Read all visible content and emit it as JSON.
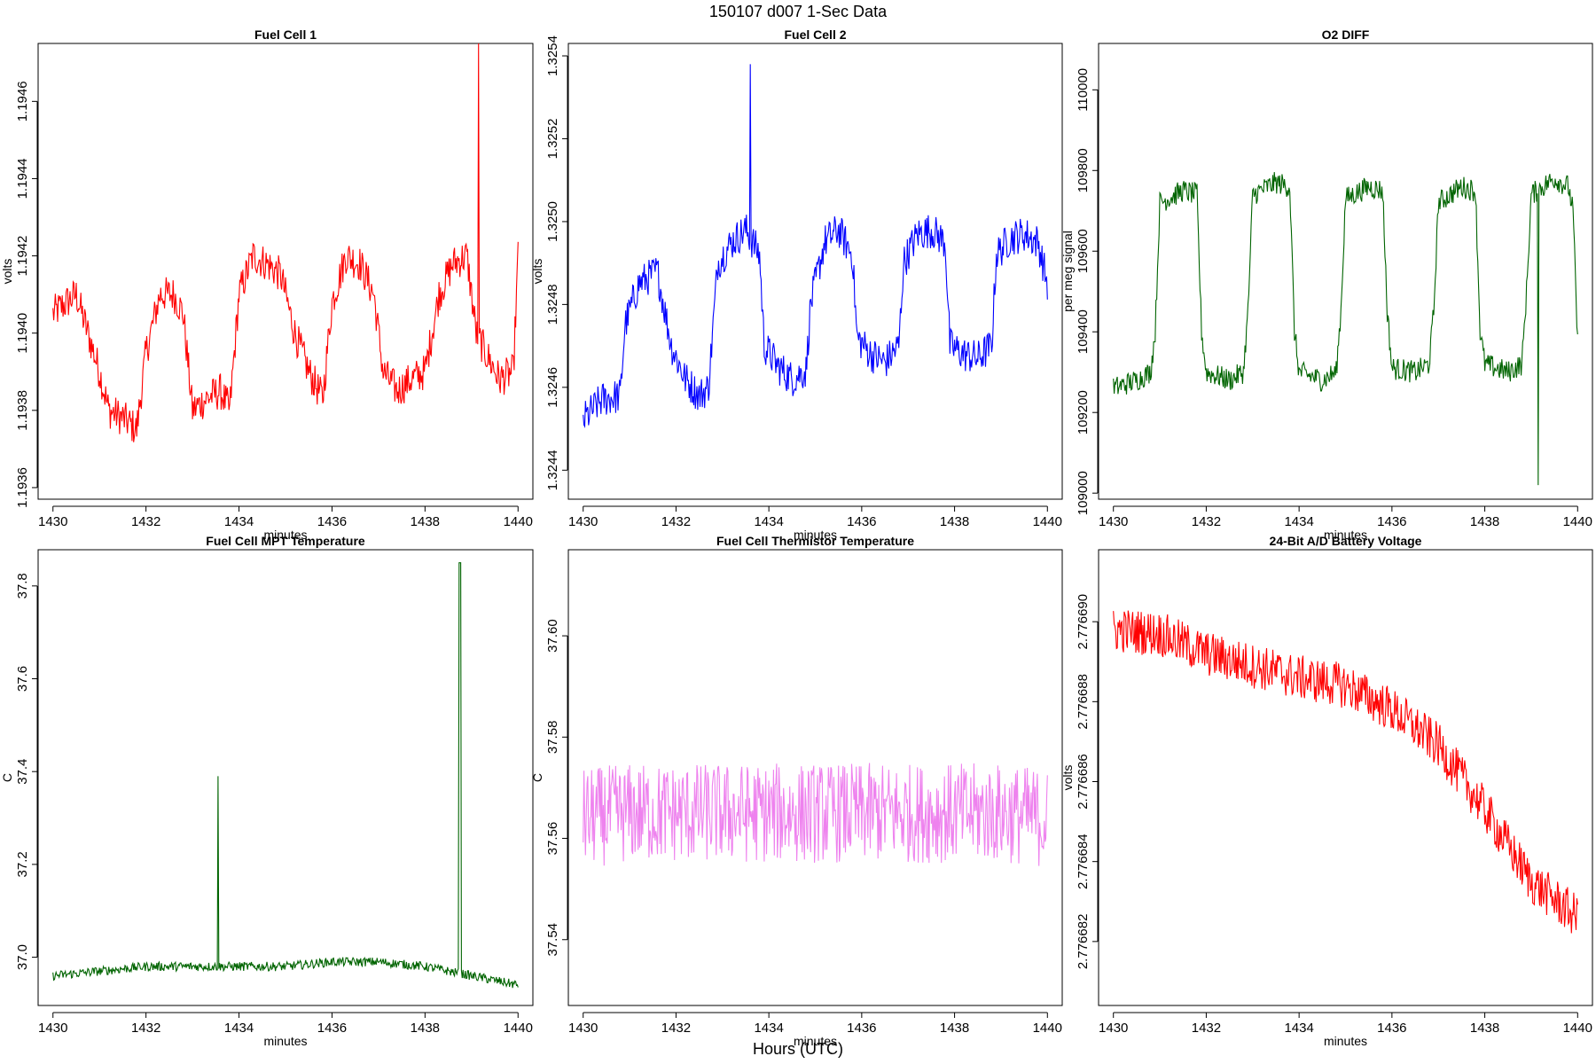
{
  "page_title": "150107   d007   1-Sec Data",
  "outer_xlabel": "Hours (UTC)",
  "chart_data": [
    {
      "type": "line",
      "title": "Fuel Cell 1",
      "xlabel": "minutes",
      "ylabel": "volts",
      "color": "#ff0000",
      "xlim": [
        1430,
        1440
      ],
      "ylim": [
        1.19357,
        1.19475
      ],
      "xticks": [
        1430,
        1432,
        1434,
        1436,
        1438,
        1440
      ],
      "yticks": [
        1.1936,
        1.1938,
        1.194,
        1.1942,
        1.1944,
        1.1946
      ],
      "ytick_decimals": 4,
      "series": [
        {
          "x": [
            1430.0,
            1430.5,
            1431.0,
            1431.2,
            1431.5,
            1431.8,
            1432.0,
            1432.3,
            1432.6,
            1432.8,
            1433.0,
            1433.3,
            1433.6,
            1433.8,
            1434.0,
            1434.3,
            1434.6,
            1434.9,
            1435.2,
            1435.5,
            1435.8,
            1436.0,
            1436.3,
            1436.6,
            1436.9,
            1437.1,
            1437.4,
            1437.7,
            1438.0,
            1438.3,
            1438.6,
            1438.9,
            1439.1,
            1439.3,
            1439.6,
            1439.9,
            1440.0
          ],
          "y": [
            1.19405,
            1.1941,
            1.1939,
            1.1938,
            1.19378,
            1.19375,
            1.19395,
            1.1941,
            1.1941,
            1.19405,
            1.1938,
            1.19383,
            1.19385,
            1.1938,
            1.1941,
            1.1942,
            1.19418,
            1.19415,
            1.194,
            1.1939,
            1.19383,
            1.19408,
            1.1942,
            1.19418,
            1.1941,
            1.1939,
            1.19385,
            1.19388,
            1.1939,
            1.1941,
            1.19418,
            1.1942,
            1.194,
            1.19395,
            1.19388,
            1.1939,
            1.1942
          ]
        }
      ]
    },
    {
      "type": "line",
      "title": "Fuel Cell 2",
      "xlabel": "minutes",
      "ylabel": "volts",
      "color": "#0000ff",
      "xlim": [
        1430,
        1440
      ],
      "ylim": [
        1.32433,
        1.32543
      ],
      "xticks": [
        1430,
        1432,
        1434,
        1436,
        1438,
        1440
      ],
      "yticks": [
        1.3244,
        1.3246,
        1.3248,
        1.325,
        1.3252,
        1.3254
      ],
      "ytick_decimals": 4,
      "series": [
        {
          "x": [
            1430.0,
            1430.4,
            1430.8,
            1430.9,
            1431.2,
            1431.6,
            1431.9,
            1432.2,
            1432.5,
            1432.7,
            1432.9,
            1433.2,
            1433.5,
            1433.8,
            1433.9,
            1434.2,
            1434.5,
            1434.8,
            1434.9,
            1435.2,
            1435.5,
            1435.8,
            1435.9,
            1436.2,
            1436.5,
            1436.8,
            1436.9,
            1437.2,
            1437.5,
            1437.8,
            1437.9,
            1438.2,
            1438.5,
            1438.8,
            1438.9,
            1439.2,
            1439.5,
            1439.8,
            1440.0
          ],
          "y": [
            1.32452,
            1.32457,
            1.32458,
            1.32475,
            1.32485,
            1.32488,
            1.3247,
            1.32462,
            1.32458,
            1.3246,
            1.3249,
            1.32495,
            1.32498,
            1.32492,
            1.3247,
            1.32465,
            1.32462,
            1.32464,
            1.3248,
            1.32495,
            1.32498,
            1.32492,
            1.32472,
            1.32468,
            1.32466,
            1.3247,
            1.3249,
            1.32497,
            1.32498,
            1.32495,
            1.3247,
            1.32468,
            1.32467,
            1.3247,
            1.32492,
            1.32496,
            1.32497,
            1.32495,
            1.32485
          ]
        }
      ]
    },
    {
      "type": "line",
      "title": "O2 DIFF",
      "xlabel": "minutes",
      "ylabel": "per meg signal",
      "color": "#006400",
      "xlim": [
        1430,
        1440
      ],
      "ylim": [
        108985,
        110115
      ],
      "xticks": [
        1430,
        1432,
        1434,
        1436,
        1438,
        1440
      ],
      "yticks": [
        109000,
        109200,
        109400,
        109600,
        109800,
        110000
      ],
      "ytick_decimals": 0,
      "series": [
        {
          "x": [
            1430.0,
            1430.5,
            1430.8,
            1430.9,
            1431.0,
            1431.5,
            1431.8,
            1431.9,
            1432.0,
            1432.5,
            1432.8,
            1432.9,
            1433.0,
            1433.5,
            1433.8,
            1433.9,
            1434.0,
            1434.5,
            1434.8,
            1434.9,
            1435.0,
            1435.5,
            1435.8,
            1435.9,
            1436.0,
            1436.5,
            1436.8,
            1436.9,
            1437.0,
            1437.5,
            1437.8,
            1437.9,
            1438.0,
            1438.5,
            1438.8,
            1438.9,
            1439.0,
            1439.5,
            1439.8,
            1439.9,
            1440.0
          ],
          "y": [
            109260,
            109280,
            109300,
            109400,
            109720,
            109750,
            109740,
            109400,
            109300,
            109280,
            109300,
            109450,
            109740,
            109770,
            109760,
            109400,
            109300,
            109280,
            109300,
            109450,
            109730,
            109760,
            109750,
            109450,
            109310,
            109300,
            109320,
            109450,
            109720,
            109760,
            109750,
            109400,
            109320,
            109300,
            109320,
            109500,
            109740,
            109780,
            109760,
            109700,
            109370
          ]
        }
      ]
    },
    {
      "type": "line",
      "title": "Fuel Cell MPT Temperature",
      "xlabel": "minutes",
      "ylabel": "C",
      "color": "#006400",
      "xlim": [
        1430,
        1440
      ],
      "ylim": [
        36.896,
        37.878
      ],
      "xticks": [
        1430,
        1432,
        1434,
        1436,
        1438,
        1440
      ],
      "yticks": [
        37.0,
        37.2,
        37.4,
        37.6,
        37.8
      ],
      "ytick_decimals": 1,
      "series": [
        {
          "x": [
            1430.0,
            1431.0,
            1432.0,
            1433.0,
            1433.5,
            1434.0,
            1435.0,
            1436.0,
            1437.0,
            1438.0,
            1438.5,
            1439.0,
            1439.5,
            1440.0
          ],
          "y": [
            36.96,
            36.97,
            36.98,
            36.98,
            36.98,
            36.98,
            36.98,
            36.99,
            36.99,
            36.98,
            36.97,
            36.96,
            36.95,
            36.94
          ]
        }
      ]
    },
    {
      "type": "line",
      "title": "Fuel Cell Thermistor Temperature",
      "xlabel": "minutes",
      "ylabel": "C",
      "color": "#ee82ee",
      "xlim": [
        1430,
        1440
      ],
      "ylim": [
        37.527,
        37.617
      ],
      "xticks": [
        1430,
        1432,
        1434,
        1436,
        1438,
        1440
      ],
      "yticks": [
        37.54,
        37.56,
        37.58,
        37.6
      ],
      "ytick_decimals": 2,
      "series": [
        {
          "x": [
            1430.0,
            1431.0,
            1432.0,
            1433.0,
            1434.0,
            1435.0,
            1436.0,
            1437.0,
            1438.0,
            1439.0,
            1440.0
          ],
          "y": [
            37.564,
            37.565,
            37.565,
            37.565,
            37.565,
            37.565,
            37.565,
            37.565,
            37.565,
            37.565,
            37.564
          ]
        }
      ]
    },
    {
      "type": "line",
      "title": "24-Bit A/D Battery Voltage",
      "xlabel": "minutes",
      "ylabel": "volts",
      "color": "#ff0000",
      "xlim": [
        1430,
        1440
      ],
      "ylim": [
        2.7766804,
        2.7766918
      ],
      "xticks": [
        1430,
        1432,
        1434,
        1436,
        1438,
        1440
      ],
      "yticks": [
        2.776682,
        2.776684,
        2.776686,
        2.776688,
        2.77669
      ],
      "ytick_decimals": 6,
      "series": [
        {
          "x": [
            1430.0,
            1431.0,
            1432.0,
            1433.0,
            1434.0,
            1435.0,
            1436.0,
            1437.0,
            1438.0,
            1439.0,
            1440.0
          ],
          "y": [
            2.7766898,
            2.7766897,
            2.7766892,
            2.7766889,
            2.7766886,
            2.7766884,
            2.7766878,
            2.7766869,
            2.7766853,
            2.7766835,
            2.7766826
          ]
        }
      ]
    }
  ]
}
